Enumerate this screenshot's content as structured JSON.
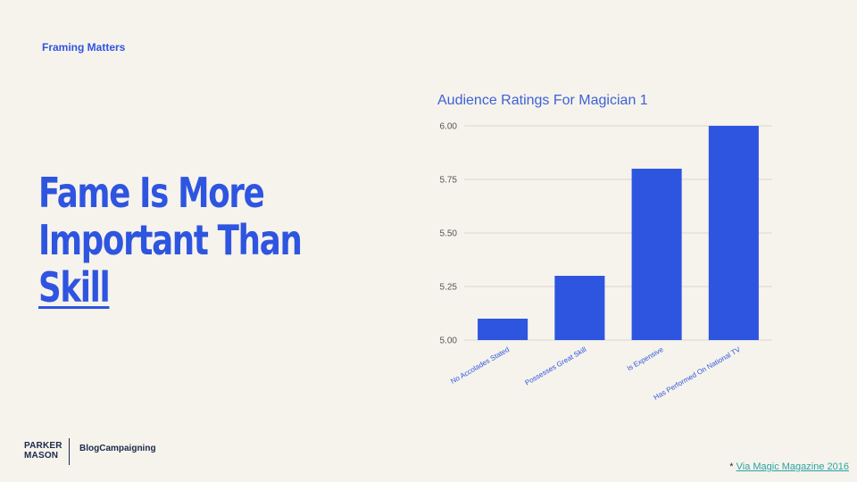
{
  "slide": {
    "section_label": "Framing Matters",
    "headline": {
      "line1": "Fame Is More",
      "line2": "Important Than",
      "line3": "Skill"
    }
  },
  "chart_data": {
    "type": "bar",
    "title": "Audience Ratings For Magician 1",
    "categories": [
      "No Accolades Stated",
      "Possesses Great Skill",
      "Is Expensive",
      "Has Performed On National TV"
    ],
    "values": [
      5.1,
      5.3,
      5.8,
      6.0
    ],
    "ylim": [
      5.0,
      6.0
    ],
    "yticks": [
      "5.00",
      "5.25",
      "5.50",
      "5.75",
      "6.00"
    ],
    "ytick_values": [
      5.0,
      5.25,
      5.5,
      5.75,
      6.0
    ],
    "xlabel": "",
    "ylabel": "",
    "grid": true,
    "bar_color": "#2e55e0"
  },
  "footer": {
    "logo_line1": "PARKER",
    "logo_line2": "MASON",
    "brand": "BlogCampaigning",
    "source_prefix": "* ",
    "source_link": "Via Magic Magazine 2016"
  }
}
